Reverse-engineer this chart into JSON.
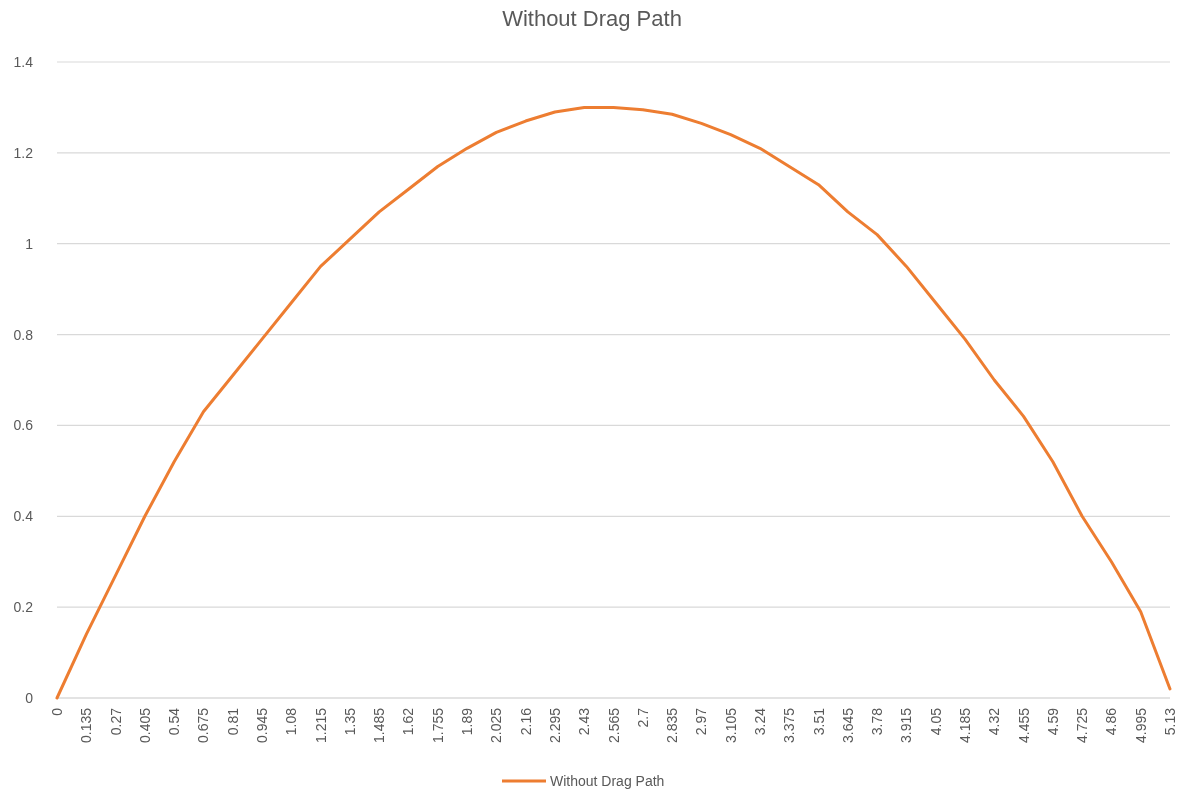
{
  "chart_data": {
    "type": "line",
    "title": "Without Drag Path",
    "categories": [
      "0",
      "0.135",
      "0.27",
      "0.405",
      "0.54",
      "0.675",
      "0.81",
      "0.945",
      "1.08",
      "1.215",
      "1.35",
      "1.485",
      "1.62",
      "1.755",
      "1.89",
      "2.025",
      "2.16",
      "2.295",
      "2.43",
      "2.565",
      "2.7",
      "2.835",
      "2.97",
      "3.105",
      "3.24",
      "3.375",
      "3.51",
      "3.645",
      "3.78",
      "3.915",
      "4.05",
      "4.185",
      "4.32",
      "4.455",
      "4.59",
      "4.725",
      "4.86",
      "4.995",
      "5.13"
    ],
    "series": [
      {
        "name": "Without Drag Path",
        "color": "#ed7d31",
        "values": [
          0,
          0.14,
          0.27,
          0.4,
          0.52,
          0.63,
          0.71,
          0.79,
          0.87,
          0.95,
          1.01,
          1.07,
          1.12,
          1.17,
          1.21,
          1.245,
          1.27,
          1.29,
          1.3,
          1.3,
          1.295,
          1.285,
          1.265,
          1.24,
          1.21,
          1.17,
          1.13,
          1.07,
          1.02,
          0.95,
          0.87,
          0.79,
          0.7,
          0.62,
          0.52,
          0.4,
          0.3,
          0.19,
          0.02
        ]
      }
    ],
    "ylim": [
      0,
      1.4
    ],
    "yticks": [
      0,
      0.2,
      0.4,
      0.6,
      0.8,
      1,
      1.2,
      1.4
    ],
    "grid": "y",
    "legend": "bottom",
    "marker": "none",
    "line_style": "solid"
  }
}
